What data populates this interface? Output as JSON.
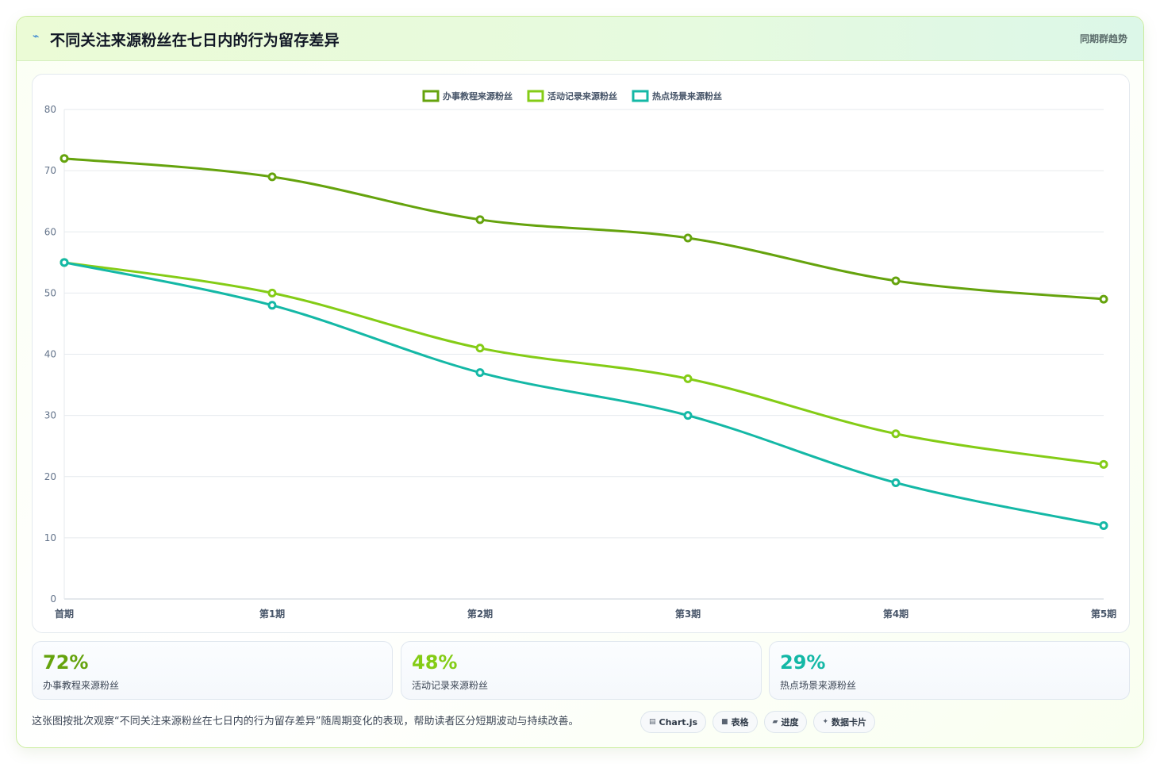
{
  "header": {
    "icon": "chart-line-icon",
    "title": "不同关注来源粉丝在七日内的行为留存差异",
    "right_label": "同期群趋势"
  },
  "chart_data": {
    "type": "line",
    "title": "",
    "xlabel": "",
    "ylabel": "",
    "categories": [
      "首期",
      "第1期",
      "第2期",
      "第3期",
      "第4期",
      "第5期"
    ],
    "ylim": [
      0,
      80
    ],
    "yticks": [
      0,
      10,
      20,
      30,
      40,
      50,
      60,
      70,
      80
    ],
    "grid": true,
    "legend_position": "top-center",
    "series": [
      {
        "name": "办事教程来源粉丝",
        "color": "#65a30d",
        "values": [
          72,
          69,
          62,
          59,
          52,
          49
        ]
      },
      {
        "name": "活动记录来源粉丝",
        "color": "#84cc16",
        "values": [
          55,
          50,
          41,
          36,
          27,
          22
        ]
      },
      {
        "name": "热点场景来源粉丝",
        "color": "#14b8a6",
        "values": [
          55,
          48,
          37,
          30,
          19,
          12
        ]
      }
    ]
  },
  "stats": [
    {
      "value": "72%",
      "label": "办事教程来源粉丝",
      "color": "#65a30d"
    },
    {
      "value": "48%",
      "label": "活动记录来源粉丝",
      "color": "#84cc16"
    },
    {
      "value": "29%",
      "label": "热点场景来源粉丝",
      "color": "#14b8a6"
    }
  ],
  "footer": {
    "note": "这张图按批次观察“不同关注来源粉丝在七日内的行为留存差异”随周期变化的表现，帮助读者区分短期波动与持续改善。",
    "tags": [
      {
        "icon": "chart-icon",
        "glyph": "▤",
        "label": "Chart.js"
      },
      {
        "icon": "table-icon",
        "glyph": "■",
        "label": "表格"
      },
      {
        "icon": "progress-icon",
        "glyph": "▰",
        "label": "进度"
      },
      {
        "icon": "card-icon",
        "glyph": "✦",
        "label": "数据卡片"
      }
    ]
  }
}
